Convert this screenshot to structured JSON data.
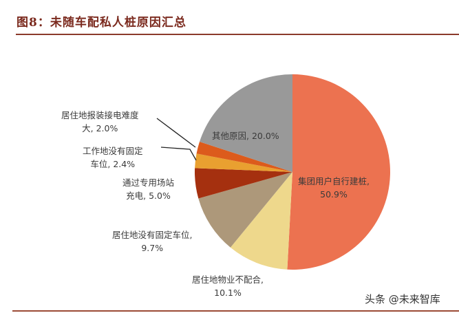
{
  "header": {
    "title": "图8：未随车配私人桩原因汇总"
  },
  "watermark": "头条 @未来智库",
  "chart_data": {
    "type": "pie",
    "title": "图8：未随车配私人桩原因汇总",
    "start_angle": "12 o'clock, clockwise",
    "slices": [
      {
        "label": "集团用户自行建桩",
        "value": 50.9,
        "color": "#ec7250"
      },
      {
        "label": "居住地物业不配合",
        "value": 10.1,
        "color": "#eed88c"
      },
      {
        "label": "居住地没有固定车位",
        "value": 9.7,
        "color": "#ad987a"
      },
      {
        "label": "通过专用场站充电",
        "value": 5.0,
        "color": "#a5300f"
      },
      {
        "label": "工作地没有固定车位",
        "value": 2.4,
        "color": "#e9a030"
      },
      {
        "label": "居住地报装接电难度大",
        "value": 2.0,
        "color": "#dc5b1c"
      },
      {
        "label": "其他原因",
        "value": 20.0,
        "color": "#999999"
      }
    ],
    "legend": "none (data labels on/around slices)"
  },
  "labels": {
    "group_users": {
      "line1": "集团用户自行建桩,",
      "line2": "50.9%"
    },
    "property": {
      "line1": "居住地物业不配合,",
      "line2": "10.1%"
    },
    "no_parking_home": {
      "line1": "居住地没有固定车位,",
      "line2": "9.7%"
    },
    "dedicated_station": {
      "line1": "通过专用场站",
      "line2": "充电, 5.0%"
    },
    "no_parking_work": {
      "line1": "工作地没有固定",
      "line2": "车位, 2.4%"
    },
    "power_difficulty": {
      "line1": "居住地报装接电难度",
      "line2": "大, 2.0%"
    },
    "other": {
      "line1": "其他原因, 20.0%"
    }
  }
}
